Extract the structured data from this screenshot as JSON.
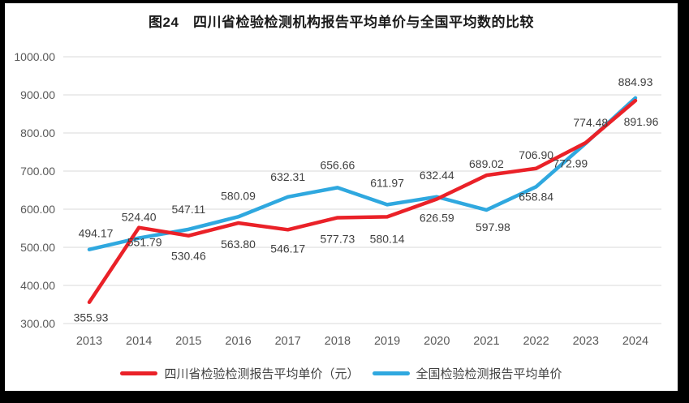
{
  "title": "图24　四川省检验检测机构报告平均单价与全国平均数的比较",
  "chart_data": {
    "type": "line",
    "title": "图24　四川省检验检测机构报告平均单价与全国平均数的比较",
    "categories": [
      "2013",
      "2014",
      "2015",
      "2016",
      "2017",
      "2018",
      "2019",
      "2020",
      "2021",
      "2022",
      "2023",
      "2024"
    ],
    "series": [
      {
        "name": "四川省检验检测报告平均单价（元）",
        "color": "#ea2128",
        "values": [
          355.93,
          551.79,
          530.46,
          563.8,
          546.17,
          577.73,
          580.14,
          626.59,
          689.02,
          706.9,
          774.48,
          884.93
        ],
        "label_positions": [
          "below",
          "below",
          "below",
          "below",
          "below",
          "below",
          "below",
          "below",
          "above",
          "above",
          "above",
          "above"
        ]
      },
      {
        "name": "全国检验检测报告平均单价",
        "color": "#2fa8df",
        "values": [
          494.17,
          524.4,
          547.11,
          580.09,
          632.31,
          656.66,
          611.97,
          632.44,
          597.98,
          658.84,
          772.99,
          891.96
        ],
        "label_positions": [
          "above",
          "above",
          "above",
          "above",
          "above",
          "above",
          "above",
          "above",
          "below",
          "below",
          "below",
          "below"
        ]
      }
    ],
    "ylim": [
      300,
      1000
    ],
    "ytick_step": 100,
    "ytick_decimals": 2,
    "value_label_decimals": 2,
    "grid": true,
    "legend_position": "bottom",
    "axis_tick_color": "#595959",
    "gridline_color": "#d9d9d9",
    "data_label_color": "#3f3f3f",
    "frame_color": "#000000",
    "background": "#ffffff"
  }
}
